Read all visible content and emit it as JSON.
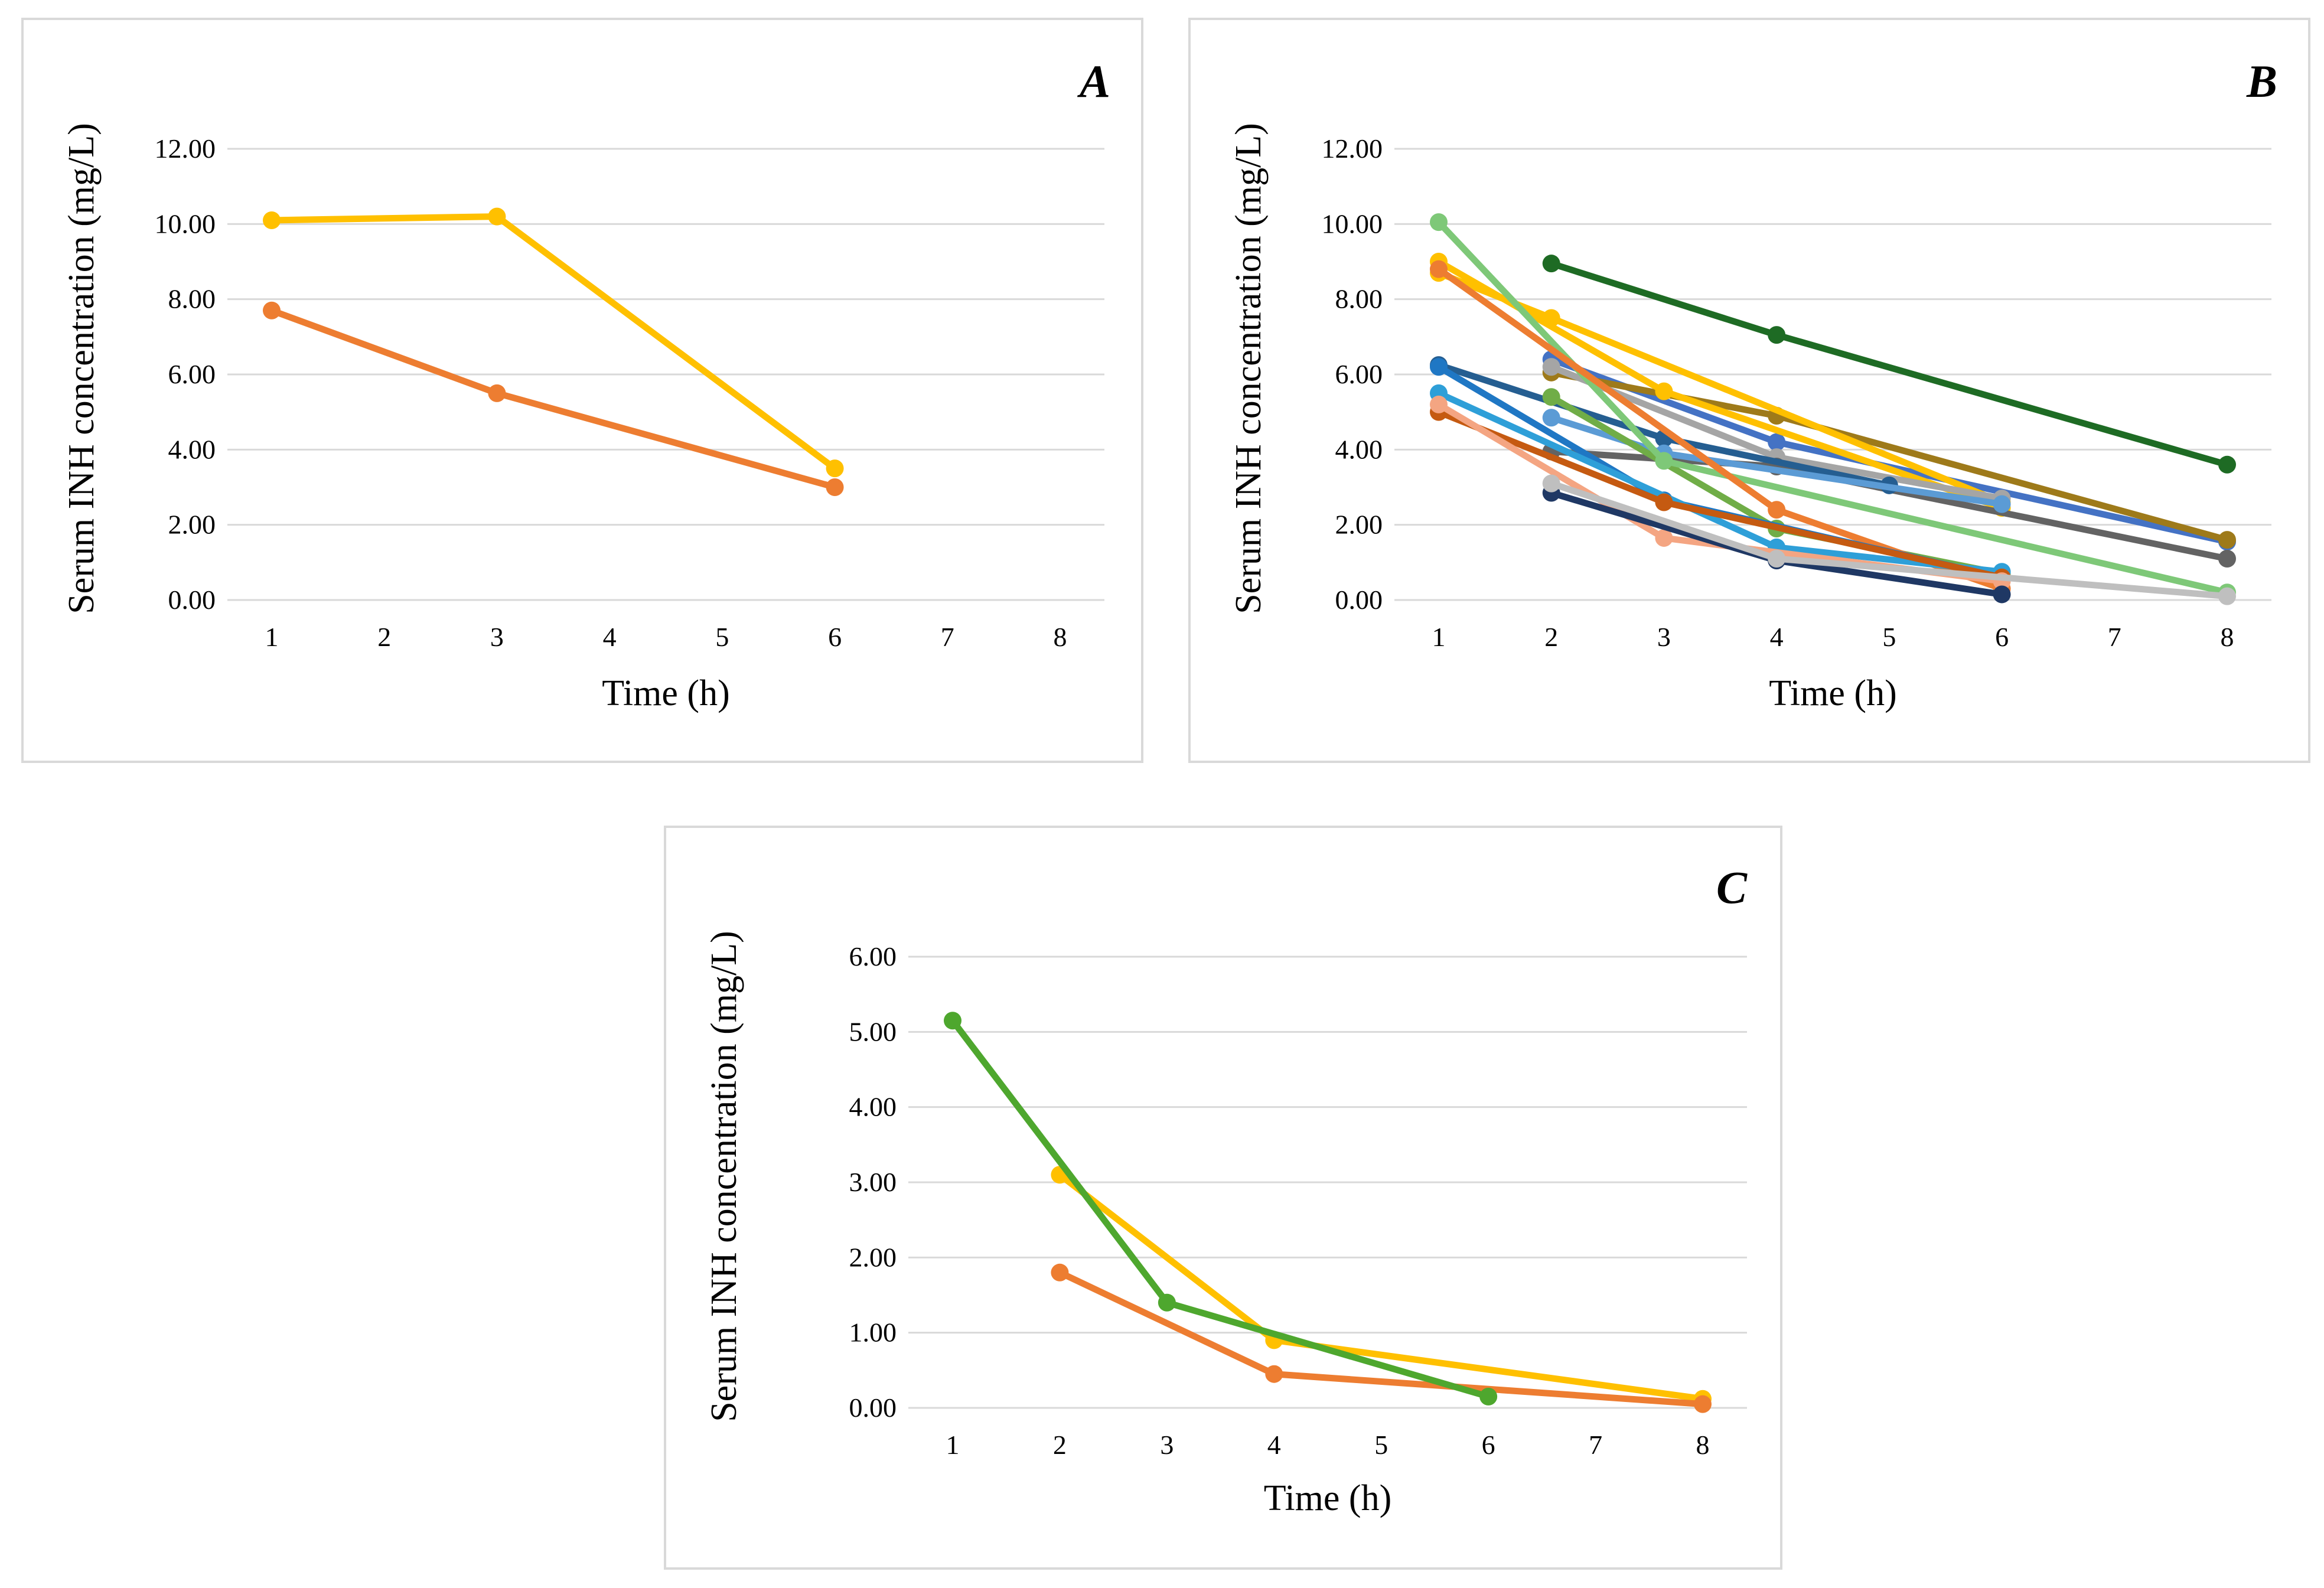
{
  "chart_data": [
    {
      "panel": "A",
      "type": "line",
      "ylabel": "Serum INH concentration (mg/L)",
      "xlabel": "Time (h)",
      "xticks": [
        1,
        2,
        3,
        4,
        5,
        6,
        7,
        8
      ],
      "yticks": [
        "0.00",
        "2.00",
        "4.00",
        "6.00",
        "8.00",
        "10.00",
        "12.00"
      ],
      "ylim": [
        0,
        12
      ],
      "xlim": [
        1,
        8
      ],
      "grid": true,
      "series": [
        {
          "color": "#ffc000",
          "points": [
            [
              1,
              10.1
            ],
            [
              3,
              10.2
            ],
            [
              6,
              3.5
            ]
          ]
        },
        {
          "color": "#ed7d31",
          "points": [
            [
              1,
              7.7
            ],
            [
              3,
              5.5
            ],
            [
              6,
              3.0
            ]
          ]
        }
      ]
    },
    {
      "panel": "B",
      "type": "line",
      "ylabel": "Serum INH concentration (mg/L)",
      "xlabel": "Time (h)",
      "xticks": [
        1,
        2,
        3,
        4,
        5,
        6,
        7,
        8
      ],
      "yticks": [
        "0.00",
        "2.00",
        "4.00",
        "6.00",
        "8.00",
        "10.00",
        "12.00"
      ],
      "ylim": [
        0,
        12
      ],
      "xlim": [
        1,
        8
      ],
      "grid": true,
      "series": [
        {
          "color": "#1e6b24",
          "points": [
            [
              2,
              8.95
            ],
            [
              4,
              7.05
            ],
            [
              8,
              3.6
            ]
          ]
        },
        {
          "color": "#4472c4",
          "points": [
            [
              2,
              6.4
            ],
            [
              4,
              4.2
            ],
            [
              8,
              1.55
            ]
          ]
        },
        {
          "color": "#9e7a1a",
          "points": [
            [
              2,
              6.05
            ],
            [
              4,
              4.9
            ],
            [
              8,
              1.6
            ]
          ]
        },
        {
          "color": "#ffc000",
          "points": [
            [
              1,
              9.0
            ],
            [
              3,
              5.55
            ],
            [
              6,
              2.45
            ]
          ]
        },
        {
          "color": "#ffc000",
          "points": [
            [
              1,
              8.7
            ],
            [
              2,
              7.5
            ],
            [
              6,
              2.6
            ]
          ]
        },
        {
          "color": "#a5a5a5",
          "points": [
            [
              2,
              6.2
            ],
            [
              4,
              3.8
            ],
            [
              6,
              2.7
            ]
          ]
        },
        {
          "color": "#636363",
          "points": [
            [
              2,
              3.95
            ],
            [
              4,
              3.55
            ],
            [
              8,
              1.1
            ]
          ]
        },
        {
          "color": "#255e91",
          "points": [
            [
              1,
              6.25
            ],
            [
              3,
              4.3
            ],
            [
              5,
              3.05
            ]
          ]
        },
        {
          "color": "#5b9bd5",
          "points": [
            [
              2,
              4.85
            ],
            [
              3,
              3.9
            ],
            [
              6,
              2.55
            ]
          ]
        },
        {
          "color": "#70ad47",
          "points": [
            [
              2,
              5.4
            ],
            [
              4,
              1.9
            ],
            [
              6,
              0.7
            ]
          ]
        },
        {
          "color": "#7ec878",
          "points": [
            [
              1,
              10.05
            ],
            [
              3,
              3.7
            ],
            [
              8,
              0.2
            ]
          ]
        },
        {
          "color": "#ed7d31",
          "points": [
            [
              1,
              8.8
            ],
            [
              4,
              2.4
            ],
            [
              6,
              0.3
            ]
          ]
        },
        {
          "color": "#1f77c4",
          "points": [
            [
              1,
              6.2
            ],
            [
              3,
              2.65
            ],
            [
              6,
              0.6
            ]
          ]
        },
        {
          "color": "#2e9fd8",
          "points": [
            [
              1,
              5.5
            ],
            [
              4,
              1.4
            ],
            [
              6,
              0.75
            ]
          ]
        },
        {
          "color": "#c55a11",
          "points": [
            [
              1,
              5.0
            ],
            [
              3,
              2.6
            ],
            [
              6,
              0.6
            ]
          ]
        },
        {
          "color": "#f4a582",
          "points": [
            [
              1,
              5.2
            ],
            [
              3,
              1.65
            ],
            [
              6,
              0.5
            ]
          ]
        },
        {
          "color": "#1f3864",
          "points": [
            [
              2,
              2.85
            ],
            [
              4,
              1.05
            ],
            [
              6,
              0.15
            ]
          ]
        },
        {
          "color": "#bfbfbf",
          "points": [
            [
              2,
              3.1
            ],
            [
              4,
              1.1
            ],
            [
              8,
              0.1
            ]
          ]
        }
      ]
    },
    {
      "panel": "C",
      "type": "line",
      "ylabel": "Serum INH concentration (mg/L)",
      "xlabel": "Time (h)",
      "xticks": [
        1,
        2,
        3,
        4,
        5,
        6,
        7,
        8
      ],
      "yticks": [
        "0.00",
        "1.00",
        "2.00",
        "3.00",
        "4.00",
        "5.00",
        "6.00"
      ],
      "ylim": [
        0,
        6
      ],
      "xlim": [
        1,
        8
      ],
      "grid": true,
      "series": [
        {
          "color": "#ffc000",
          "points": [
            [
              2,
              3.1
            ],
            [
              4,
              0.9
            ],
            [
              8,
              0.12
            ]
          ]
        },
        {
          "color": "#ed7d31",
          "points": [
            [
              2,
              1.8
            ],
            [
              4,
              0.45
            ],
            [
              8,
              0.05
            ]
          ]
        },
        {
          "color": "#4ea72e",
          "points": [
            [
              1,
              5.15
            ],
            [
              3,
              1.4
            ],
            [
              6,
              0.15
            ]
          ]
        }
      ]
    }
  ]
}
